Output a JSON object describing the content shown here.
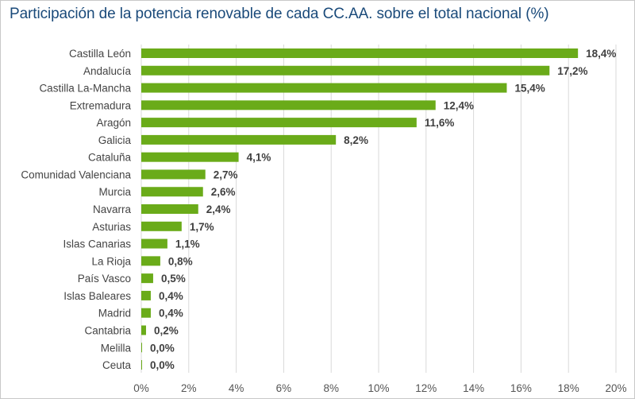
{
  "chart_data": {
    "type": "bar",
    "orientation": "horizontal",
    "title": "Participación de la potencia renovable de cada CC.AA. sobre el total nacional (%)",
    "xlabel": "",
    "ylabel": "",
    "categories": [
      "Castilla León",
      "Andalucía",
      "Castilla La-Mancha",
      "Extremadura",
      "Aragón",
      "Galicia",
      "Cataluña",
      "Comunidad Valenciana",
      "Murcia",
      "Navarra",
      "Asturias",
      "Islas Canarias",
      "La Rioja",
      "País Vasco",
      "Islas Baleares",
      "Madrid",
      "Cantabria",
      "Melilla",
      "Ceuta"
    ],
    "values": [
      18.4,
      17.2,
      15.4,
      12.4,
      11.6,
      8.2,
      4.1,
      2.7,
      2.6,
      2.4,
      1.7,
      1.1,
      0.8,
      0.5,
      0.4,
      0.4,
      0.2,
      0.0,
      0.0
    ],
    "data_labels": [
      "18,4%",
      "17,2%",
      "15,4%",
      "12,4%",
      "11,6%",
      "8,2%",
      "4,1%",
      "2,7%",
      "2,6%",
      "2,4%",
      "1,7%",
      "1,1%",
      "0,8%",
      "0,5%",
      "0,4%",
      "0,4%",
      "0,2%",
      "0,0%",
      "0,0%"
    ],
    "xlim": [
      0,
      20
    ],
    "xticks": [
      "0%",
      "2%",
      "4%",
      "6%",
      "8%",
      "10%",
      "12%",
      "14%",
      "16%",
      "18%",
      "20%"
    ],
    "grid": true,
    "bar_color": "#6aab19",
    "title_color": "#1a4a7a"
  }
}
